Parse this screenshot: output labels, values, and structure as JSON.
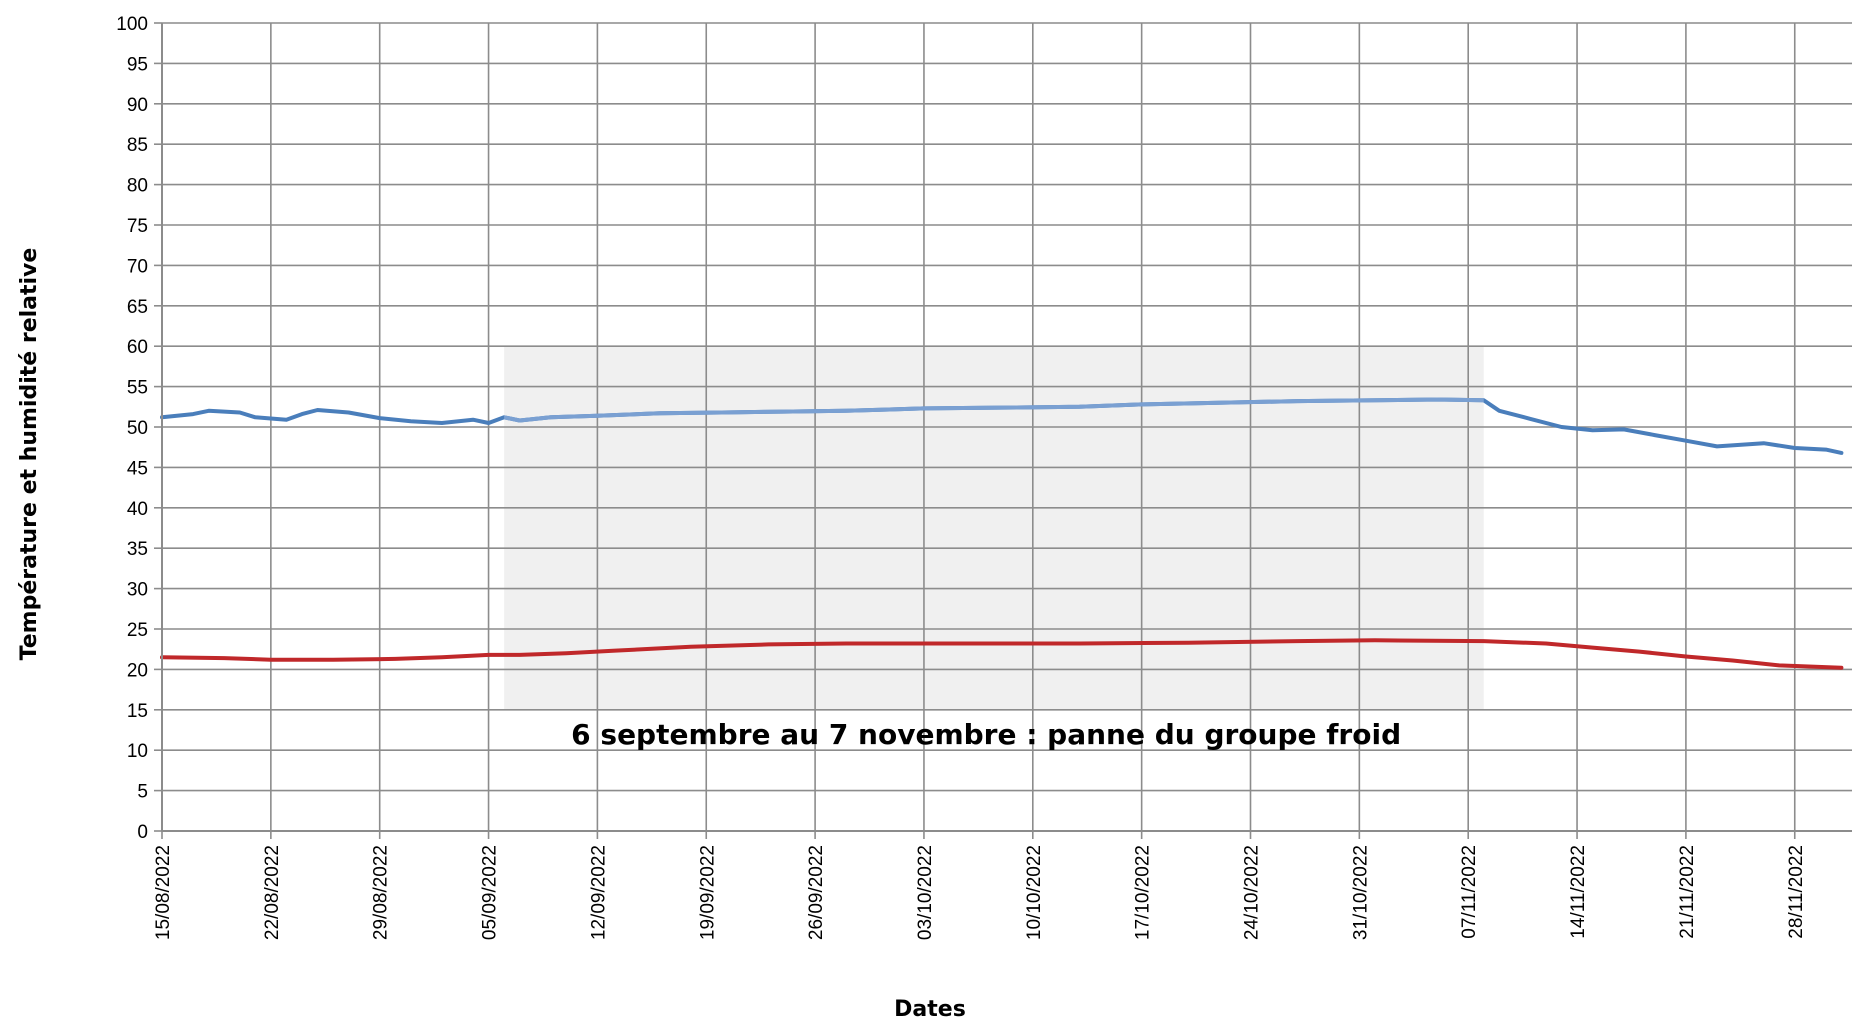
{
  "chart_data": {
    "type": "line",
    "title": "",
    "xlabel": "Dates",
    "ylabel": "Température et humidité relative",
    "ylim": [
      0,
      100
    ],
    "yticks": [
      0,
      5,
      10,
      15,
      20,
      25,
      30,
      35,
      40,
      45,
      50,
      55,
      60,
      65,
      70,
      75,
      80,
      85,
      90,
      95,
      100
    ],
    "xlim": [
      "2022-08-15",
      "2022-12-01"
    ],
    "x_tick_dates": [
      "2022-08-15",
      "2022-08-22",
      "2022-08-29",
      "2022-09-05",
      "2022-09-12",
      "2022-09-19",
      "2022-09-26",
      "2022-10-03",
      "2022-10-10",
      "2022-10-17",
      "2022-10-24",
      "2022-10-31",
      "2022-11-07",
      "2022-11-14",
      "2022-11-21",
      "2022-11-28"
    ],
    "x_tick_labels": [
      "15/08/2022",
      "22/08/2022",
      "29/08/2022",
      "05/09/2022",
      "12/09/2022",
      "19/09/2022",
      "26/09/2022",
      "03/10/2022",
      "10/10/2022",
      "17/10/2022",
      "24/10/2022",
      "31/10/2022",
      "07/11/2022",
      "14/11/2022",
      "21/11/2022",
      "28/11/2022"
    ],
    "grid": true,
    "series": [
      {
        "color": "#4a7ebb",
        "color_highlight": "#7aa0d2",
        "points": [
          [
            "2022-08-15",
            51.2
          ],
          [
            "2022-08-17",
            51.6
          ],
          [
            "2022-08-18",
            52.0
          ],
          [
            "2022-08-20",
            51.8
          ],
          [
            "2022-08-21",
            51.2
          ],
          [
            "2022-08-23",
            50.9
          ],
          [
            "2022-08-24",
            51.6
          ],
          [
            "2022-08-25",
            52.1
          ],
          [
            "2022-08-27",
            51.8
          ],
          [
            "2022-08-29",
            51.1
          ],
          [
            "2022-08-31",
            50.7
          ],
          [
            "2022-09-02",
            50.5
          ],
          [
            "2022-09-04",
            50.9
          ],
          [
            "2022-09-05",
            50.5
          ],
          [
            "2022-09-06",
            51.2
          ],
          [
            "2022-09-07",
            50.8
          ],
          [
            "2022-09-09",
            51.2
          ],
          [
            "2022-09-12",
            51.4
          ],
          [
            "2022-09-16",
            51.7
          ],
          [
            "2022-09-20",
            51.8
          ],
          [
            "2022-09-24",
            51.9
          ],
          [
            "2022-09-28",
            52.0
          ],
          [
            "2022-10-03",
            52.3
          ],
          [
            "2022-10-08",
            52.4
          ],
          [
            "2022-10-13",
            52.5
          ],
          [
            "2022-10-17",
            52.8
          ],
          [
            "2022-10-22",
            53.0
          ],
          [
            "2022-10-27",
            53.2
          ],
          [
            "2022-11-01",
            53.3
          ],
          [
            "2022-11-05",
            53.4
          ],
          [
            "2022-11-08",
            53.3
          ],
          [
            "2022-11-09",
            52.0
          ],
          [
            "2022-11-11",
            51.0
          ],
          [
            "2022-11-13",
            50.0
          ],
          [
            "2022-11-15",
            49.6
          ],
          [
            "2022-11-17",
            49.7
          ],
          [
            "2022-11-19",
            49.0
          ],
          [
            "2022-11-21",
            48.3
          ],
          [
            "2022-11-23",
            47.6
          ],
          [
            "2022-11-26",
            48.0
          ],
          [
            "2022-11-28",
            47.4
          ],
          [
            "2022-11-30",
            47.2
          ],
          [
            "2022-12-01",
            46.8
          ]
        ]
      },
      {
        "color": "#c0282a",
        "points": [
          [
            "2022-08-15",
            21.5
          ],
          [
            "2022-08-19",
            21.4
          ],
          [
            "2022-08-22",
            21.2
          ],
          [
            "2022-08-26",
            21.2
          ],
          [
            "2022-08-30",
            21.3
          ],
          [
            "2022-09-02",
            21.5
          ],
          [
            "2022-09-05",
            21.8
          ],
          [
            "2022-09-07",
            21.8
          ],
          [
            "2022-09-10",
            22.0
          ],
          [
            "2022-09-13",
            22.3
          ],
          [
            "2022-09-18",
            22.8
          ],
          [
            "2022-09-23",
            23.1
          ],
          [
            "2022-09-28",
            23.2
          ],
          [
            "2022-10-03",
            23.2
          ],
          [
            "2022-10-13",
            23.2
          ],
          [
            "2022-10-20",
            23.3
          ],
          [
            "2022-10-27",
            23.5
          ],
          [
            "2022-11-01",
            23.6
          ],
          [
            "2022-11-08",
            23.5
          ],
          [
            "2022-11-12",
            23.2
          ],
          [
            "2022-11-15",
            22.7
          ],
          [
            "2022-11-18",
            22.2
          ],
          [
            "2022-11-21",
            21.6
          ],
          [
            "2022-11-24",
            21.1
          ],
          [
            "2022-11-27",
            20.5
          ],
          [
            "2022-12-01",
            20.2
          ]
        ]
      }
    ],
    "shaded_region": {
      "x_start": "2022-09-06",
      "x_end": "2022-11-08",
      "y_min": 15,
      "y_max": 60,
      "color": "#f0f0f0"
    },
    "annotation": {
      "text": "6 septembre au 7 novembre : panne du groupe froid",
      "x": "2022-10-07",
      "y": 12
    }
  }
}
